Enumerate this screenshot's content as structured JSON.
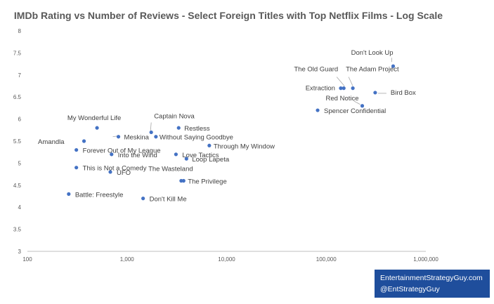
{
  "chart_data": {
    "type": "scatter",
    "title": "IMDb Rating vs Number of Reviews - Select Foreign Titles with Top Netflix Films - Log Scale",
    "xlabel": "",
    "ylabel": "",
    "x_scale": "log",
    "xlim": [
      100,
      1000000
    ],
    "ylim": [
      3,
      8
    ],
    "x_ticks": [
      100,
      1000,
      10000,
      100000,
      1000000
    ],
    "x_tick_labels": [
      "100",
      "1,000",
      "10,000",
      "100,000",
      "1,000,000"
    ],
    "y_ticks": [
      3,
      3.5,
      4,
      4.5,
      5,
      5.5,
      6,
      6.5,
      7,
      7.5,
      8
    ],
    "y_tick_labels": [
      "3",
      "3.5",
      "4",
      "4.5",
      "5",
      "5.5",
      "6",
      "6.5",
      "7",
      "7.5",
      "8"
    ],
    "grid": false,
    "marker_color": "#4472c4",
    "points": [
      {
        "label": "Don't Look Up",
        "x": 470000,
        "y": 7.2
      },
      {
        "label": "Bird Box",
        "x": 310000,
        "y": 6.6
      },
      {
        "label": "The Adam Project",
        "x": 185000,
        "y": 6.7
      },
      {
        "label": "The Old Guard",
        "x": 150000,
        "y": 6.7
      },
      {
        "label": "Extraction",
        "x": 140000,
        "y": 6.7
      },
      {
        "label": "Red Notice",
        "x": 230000,
        "y": 6.3
      },
      {
        "label": "Spencer Confidential",
        "x": 82000,
        "y": 6.2
      },
      {
        "label": "My Wonderful Life",
        "x": 500,
        "y": 5.8
      },
      {
        "label": "Captain Nova",
        "x": 1750,
        "y": 5.7
      },
      {
        "label": "Restless",
        "x": 3300,
        "y": 5.8
      },
      {
        "label": "Meskina",
        "x": 820,
        "y": 5.6
      },
      {
        "label": "Without Saying Goodbye",
        "x": 1950,
        "y": 5.6
      },
      {
        "label": "Amandla",
        "x": 370,
        "y": 5.5
      },
      {
        "label": "Through My Window",
        "x": 6700,
        "y": 5.4
      },
      {
        "label": "Forever Out of My League",
        "x": 310,
        "y": 5.3
      },
      {
        "label": "Into the Wind",
        "x": 700,
        "y": 5.2
      },
      {
        "label": "Love Tactics",
        "x": 3100,
        "y": 5.2
      },
      {
        "label": "Loop Lapeta",
        "x": 3950,
        "y": 5.1
      },
      {
        "label": "This is Not a Comedy",
        "x": 310,
        "y": 4.9
      },
      {
        "label": "UFO",
        "x": 680,
        "y": 4.8
      },
      {
        "label": "The Wasteland",
        "x": 3500,
        "y": 4.6
      },
      {
        "label": "The Privilege",
        "x": 3700,
        "y": 4.6
      },
      {
        "label": "Battle: Freestyle",
        "x": 260,
        "y": 4.3
      },
      {
        "label": "Don't Kill Me",
        "x": 1450,
        "y": 4.2
      }
    ]
  },
  "watermark": {
    "line1": "EntertainmentStrategyGuy.com",
    "line2": "@EntStrategyGuy"
  }
}
